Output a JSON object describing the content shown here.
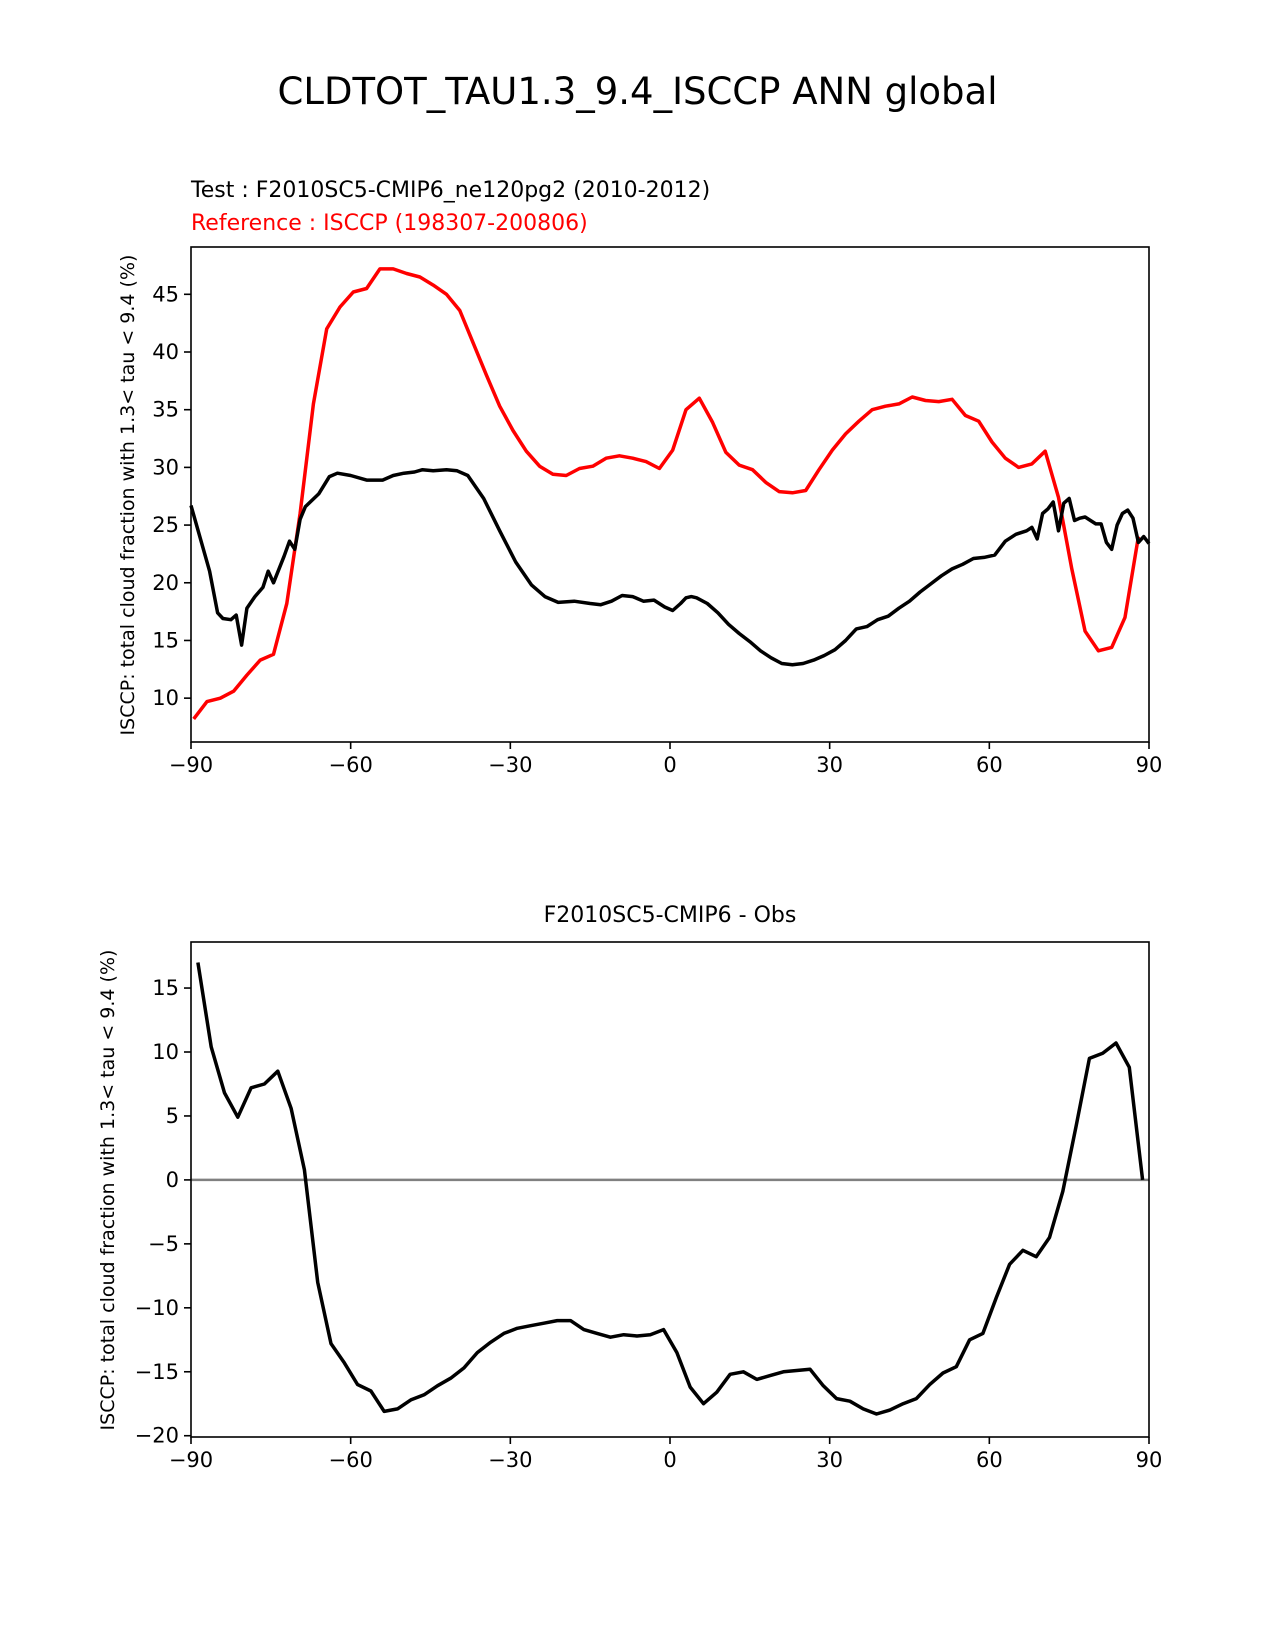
{
  "figure": {
    "title": "CLDTOT_TAU1.3_9.4_ISCCP ANN global"
  },
  "chart_data": [
    {
      "type": "line",
      "name": "test-vs-reference",
      "title_test": "Test : F2010SC5-CMIP6_ne120pg2 (2010-2012)",
      "title_reference": "Reference : ISCCP (198307-200806)",
      "xlabel": "",
      "ylabel": "ISCCP: total cloud fraction with 1.3< tau < 9.4 (%)",
      "xlim": [
        -90,
        90
      ],
      "ylim": [
        6.2,
        49.1
      ],
      "xticks": [
        -90,
        -60,
        -30,
        0,
        30,
        60,
        90
      ],
      "xtick_labels": [
        "−90",
        "−60",
        "−30",
        "0",
        "30",
        "60",
        "90"
      ],
      "yticks": [
        10,
        15,
        20,
        25,
        30,
        35,
        40,
        45
      ],
      "ytick_labels": [
        "10",
        "15",
        "20",
        "25",
        "30",
        "35",
        "40",
        "45"
      ],
      "series": [
        {
          "name": "Reference : ISCCP (198307-200806)",
          "color": "#ff0000",
          "x": [
            -89.5,
            -87,
            -84.5,
            -82,
            -79.5,
            -77,
            -74.5,
            -72,
            -69.5,
            -67,
            -64.5,
            -62,
            -59.5,
            -57,
            -54.5,
            -52,
            -49.5,
            -47,
            -44.5,
            -42,
            -39.5,
            -37,
            -34.5,
            -32,
            -29.5,
            -27,
            -24.5,
            -22,
            -19.5,
            -17,
            -14.5,
            -12,
            -9.5,
            -7,
            -4.5,
            -2,
            0.5,
            3,
            5.5,
            8,
            10.5,
            13,
            15.5,
            18,
            20.5,
            23,
            25.5,
            28,
            30.5,
            33,
            35.5,
            38,
            40.5,
            43,
            45.5,
            48,
            50.5,
            53,
            55.5,
            58,
            60.5,
            63,
            65.5,
            68,
            70.5,
            73,
            75.5,
            78,
            80.5,
            83,
            85.5,
            88
          ],
          "y": [
            8.2,
            9.7,
            10.0,
            10.6,
            12.0,
            13.3,
            13.8,
            18.2,
            26.0,
            35.5,
            42.0,
            43.9,
            45.2,
            45.5,
            47.2,
            47.2,
            46.8,
            46.5,
            45.8,
            45.0,
            43.6,
            40.8,
            38.0,
            35.3,
            33.2,
            31.4,
            30.1,
            29.4,
            29.3,
            29.9,
            30.1,
            30.8,
            31.0,
            30.8,
            30.5,
            29.9,
            31.5,
            35.0,
            36.0,
            33.9,
            31.3,
            30.2,
            29.8,
            28.7,
            27.9,
            27.8,
            28.0,
            29.8,
            31.5,
            32.9,
            34.0,
            35.0,
            35.3,
            35.5,
            36.1,
            35.8,
            35.7,
            35.9,
            34.5,
            34.0,
            32.2,
            30.8,
            30.0,
            30.3,
            31.4,
            27.4,
            21.2,
            15.8,
            14.1,
            14.4,
            17.0,
            24.0
          ]
        },
        {
          "name": "Test : F2010SC5-CMIP6_ne120pg2 (2010-2012)",
          "color": "#000000",
          "x": [
            -90,
            -86.5,
            -85,
            -84,
            -82.5,
            -81.5,
            -80.5,
            -79.5,
            -78,
            -76.5,
            -75.5,
            -74.5,
            -72.5,
            -71.5,
            -70.5,
            -69.5,
            -68.5,
            -66,
            -64,
            -62.5,
            -60,
            -57,
            -54,
            -52,
            -50,
            -48,
            -46.5,
            -44.5,
            -42,
            -40,
            -38,
            -35,
            -32,
            -29,
            -26,
            -23.5,
            -21,
            -18,
            -15,
            -13,
            -11,
            -9,
            -7,
            -5,
            -3,
            -1,
            0.5,
            2,
            3,
            4,
            5,
            7,
            9,
            11,
            13,
            15,
            17,
            19,
            21,
            23,
            25,
            27,
            29,
            31,
            33,
            35,
            37,
            39,
            41,
            43,
            45,
            47,
            49,
            51,
            53,
            55,
            57,
            59,
            61,
            63,
            65,
            67,
            68,
            69,
            70,
            71,
            72,
            73,
            74,
            75,
            76,
            77,
            78,
            79,
            80,
            81,
            82,
            83,
            84,
            85,
            86,
            87,
            88,
            89,
            90
          ],
          "y": [
            26.7,
            21.0,
            17.4,
            16.9,
            16.8,
            17.2,
            14.6,
            17.8,
            18.8,
            19.6,
            21.0,
            20.0,
            22.3,
            23.6,
            22.9,
            25.5,
            26.6,
            27.7,
            29.2,
            29.5,
            29.3,
            28.9,
            28.9,
            29.3,
            29.5,
            29.6,
            29.8,
            29.7,
            29.8,
            29.7,
            29.3,
            27.3,
            24.5,
            21.8,
            19.8,
            18.8,
            18.3,
            18.4,
            18.2,
            18.1,
            18.4,
            18.9,
            18.8,
            18.4,
            18.5,
            17.9,
            17.6,
            18.2,
            18.7,
            18.8,
            18.7,
            18.2,
            17.4,
            16.4,
            15.6,
            14.9,
            14.1,
            13.5,
            13.0,
            12.9,
            13.0,
            13.3,
            13.7,
            14.2,
            15.0,
            16.0,
            16.2,
            16.8,
            17.1,
            17.8,
            18.4,
            19.2,
            19.9,
            20.6,
            21.2,
            21.6,
            22.1,
            22.2,
            22.4,
            23.6,
            24.2,
            24.5,
            24.8,
            23.8,
            26.0,
            26.4,
            27.0,
            24.5,
            26.9,
            27.3,
            25.4,
            25.6,
            25.7,
            25.4,
            25.1,
            25.1,
            23.5,
            22.9,
            25.0,
            26.0,
            26.3,
            25.6,
            23.5,
            24.0,
            23.4
          ]
        }
      ],
      "grid": false
    },
    {
      "type": "line",
      "name": "difference",
      "title": "F2010SC5-CMIP6 - Obs",
      "xlabel": "",
      "ylabel": "ISCCP: total cloud fraction with 1.3< tau < 9.4 (%)",
      "xlim": [
        -90,
        90
      ],
      "ylim": [
        -20.1,
        18.6
      ],
      "xticks": [
        -90,
        -60,
        -30,
        0,
        30,
        60,
        90
      ],
      "xtick_labels": [
        "−90",
        "−60",
        "−30",
        "0",
        "30",
        "60",
        "90"
      ],
      "yticks": [
        -20,
        -15,
        -10,
        -5,
        0,
        5,
        10,
        15
      ],
      "ytick_labels": [
        "−20",
        "−15",
        "−10",
        "−5",
        "0",
        "5",
        "10",
        "15"
      ],
      "zero_line": {
        "y": 0,
        "color": "#808080"
      },
      "series": [
        {
          "name": "F2010SC5-CMIP6 - Obs",
          "color": "#000000",
          "x": [
            -88.7,
            -86.2,
            -83.7,
            -81.2,
            -78.7,
            -76.2,
            -73.7,
            -71.2,
            -68.7,
            -66.2,
            -63.7,
            -61.2,
            -58.7,
            -56.2,
            -53.7,
            -51.2,
            -48.7,
            -46.2,
            -43.7,
            -41.2,
            -38.7,
            -36.2,
            -33.7,
            -31.2,
            -28.7,
            -26.2,
            -23.7,
            -21.2,
            -18.7,
            -16.2,
            -13.7,
            -11.2,
            -8.7,
            -6.2,
            -3.7,
            -1.2,
            1.3,
            3.8,
            6.3,
            8.8,
            11.3,
            13.8,
            16.3,
            18.8,
            21.3,
            23.8,
            26.3,
            28.8,
            31.3,
            33.8,
            36.3,
            38.8,
            41.3,
            43.8,
            46.3,
            48.8,
            51.3,
            53.8,
            56.3,
            58.8,
            61.3,
            63.8,
            66.3,
            68.8,
            71.3,
            73.8,
            76.3,
            78.8,
            81.3,
            83.8,
            86.3,
            88.8
          ],
          "y": [
            17.0,
            10.4,
            6.8,
            4.9,
            7.2,
            7.5,
            8.5,
            5.6,
            0.8,
            -8.0,
            -12.8,
            -14.3,
            -16.0,
            -16.5,
            -18.1,
            -17.9,
            -17.2,
            -16.8,
            -16.1,
            -15.5,
            -14.7,
            -13.5,
            -12.7,
            -12.0,
            -11.6,
            -11.4,
            -11.2,
            -11.0,
            -11.0,
            -11.7,
            -12.0,
            -12.3,
            -12.1,
            -12.2,
            -12.1,
            -11.7,
            -13.5,
            -16.2,
            -17.5,
            -16.6,
            -15.2,
            -15.0,
            -15.6,
            -15.3,
            -15.0,
            -14.9,
            -14.8,
            -16.1,
            -17.1,
            -17.3,
            -17.9,
            -18.3,
            -18.0,
            -17.5,
            -17.1,
            -16.0,
            -15.1,
            -14.6,
            -12.5,
            -12.0,
            -9.2,
            -6.6,
            -5.5,
            -6.0,
            -4.5,
            -0.9,
            4.2,
            9.5,
            9.9,
            10.7,
            8.8,
            0.0
          ]
        }
      ],
      "grid": false
    }
  ]
}
